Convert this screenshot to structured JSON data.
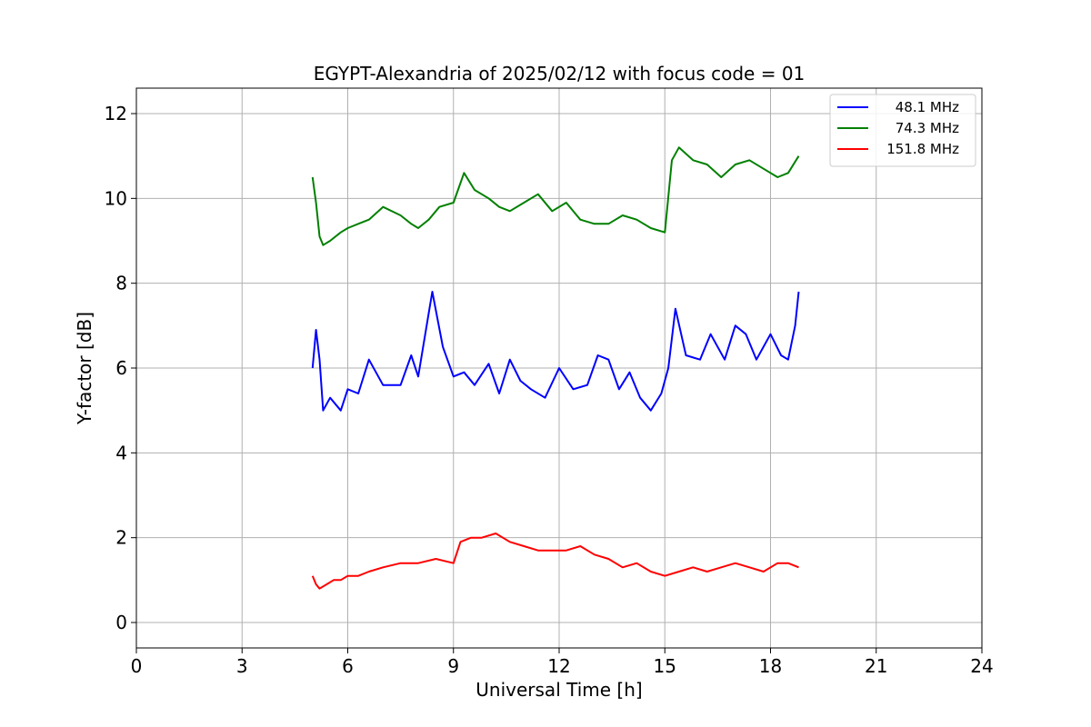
{
  "chart_data": {
    "type": "line",
    "title": "EGYPT-Alexandria of 2025/02/12 with focus code = 01",
    "xlabel": "Universal Time [h]",
    "ylabel": "Y-factor [dB]",
    "xlim": [
      0,
      24
    ],
    "ylim": [
      -0.6,
      12.6
    ],
    "xticks": [
      0,
      3,
      6,
      9,
      12,
      15,
      18,
      21,
      24
    ],
    "yticks": [
      0,
      2,
      4,
      6,
      8,
      10,
      12
    ],
    "xtick_labels": [
      "0",
      "3",
      "6",
      "9",
      "12",
      "15",
      "18",
      "21",
      "24"
    ],
    "ytick_labels": [
      "0",
      "2",
      "4",
      "6",
      "8",
      "10",
      "12"
    ],
    "grid": true,
    "legend_position": "top-right",
    "series": [
      {
        "name": "48.1 MHz",
        "color": "#0000ff",
        "x": [
          5.0,
          5.1,
          5.2,
          5.3,
          5.5,
          5.8,
          6.0,
          6.3,
          6.6,
          7.0,
          7.5,
          7.8,
          8.0,
          8.3,
          8.4,
          8.7,
          9.0,
          9.3,
          9.6,
          10.0,
          10.3,
          10.6,
          10.9,
          11.2,
          11.6,
          12.0,
          12.4,
          12.8,
          13.1,
          13.4,
          13.7,
          14.0,
          14.3,
          14.6,
          14.9,
          15.1,
          15.3,
          15.6,
          16.0,
          16.3,
          16.7,
          17.0,
          17.3,
          17.6,
          18.0,
          18.3,
          18.5,
          18.7,
          18.8
        ],
        "y": [
          6.0,
          6.9,
          6.2,
          5.0,
          5.3,
          5.0,
          5.5,
          5.4,
          6.2,
          5.6,
          5.6,
          6.3,
          5.8,
          7.3,
          7.8,
          6.5,
          5.8,
          5.9,
          5.6,
          6.1,
          5.4,
          6.2,
          5.7,
          5.5,
          5.3,
          6.0,
          5.5,
          5.6,
          6.3,
          6.2,
          5.5,
          5.9,
          5.3,
          5.0,
          5.4,
          6.0,
          7.4,
          6.3,
          6.2,
          6.8,
          6.2,
          7.0,
          6.8,
          6.2,
          6.8,
          6.3,
          6.2,
          7.0,
          7.8
        ]
      },
      {
        "name": "74.3 MHz",
        "color": "#008000",
        "x": [
          5.0,
          5.1,
          5.2,
          5.3,
          5.5,
          5.8,
          6.0,
          6.3,
          6.6,
          7.0,
          7.5,
          7.8,
          8.0,
          8.3,
          8.6,
          9.0,
          9.3,
          9.6,
          10.0,
          10.3,
          10.6,
          11.0,
          11.4,
          11.8,
          12.2,
          12.6,
          13.0,
          13.4,
          13.8,
          14.2,
          14.6,
          15.0,
          15.2,
          15.4,
          15.8,
          16.2,
          16.6,
          17.0,
          17.4,
          17.8,
          18.2,
          18.5,
          18.8
        ],
        "y": [
          10.5,
          9.9,
          9.1,
          8.9,
          9.0,
          9.2,
          9.3,
          9.4,
          9.5,
          9.8,
          9.6,
          9.4,
          9.3,
          9.5,
          9.8,
          9.9,
          10.6,
          10.2,
          10.0,
          9.8,
          9.7,
          9.9,
          10.1,
          9.7,
          9.9,
          9.5,
          9.4,
          9.4,
          9.6,
          9.5,
          9.3,
          9.2,
          10.9,
          11.2,
          10.9,
          10.8,
          10.5,
          10.8,
          10.9,
          10.7,
          10.5,
          10.6,
          11.0
        ]
      },
      {
        "name": "151.8 MHz",
        "color": "#ff0000",
        "x": [
          5.0,
          5.1,
          5.2,
          5.4,
          5.6,
          5.8,
          6.0,
          6.3,
          6.6,
          7.0,
          7.5,
          8.0,
          8.5,
          9.0,
          9.2,
          9.5,
          9.8,
          10.2,
          10.6,
          11.0,
          11.4,
          11.8,
          12.2,
          12.6,
          13.0,
          13.4,
          13.8,
          14.2,
          14.6,
          15.0,
          15.4,
          15.8,
          16.2,
          16.6,
          17.0,
          17.4,
          17.8,
          18.2,
          18.5,
          18.8
        ],
        "y": [
          1.1,
          0.9,
          0.8,
          0.9,
          1.0,
          1.0,
          1.1,
          1.1,
          1.2,
          1.3,
          1.4,
          1.4,
          1.5,
          1.4,
          1.9,
          2.0,
          2.0,
          2.1,
          1.9,
          1.8,
          1.7,
          1.7,
          1.7,
          1.8,
          1.6,
          1.5,
          1.3,
          1.4,
          1.2,
          1.1,
          1.2,
          1.3,
          1.2,
          1.3,
          1.4,
          1.3,
          1.2,
          1.4,
          1.4,
          1.3
        ]
      }
    ]
  }
}
